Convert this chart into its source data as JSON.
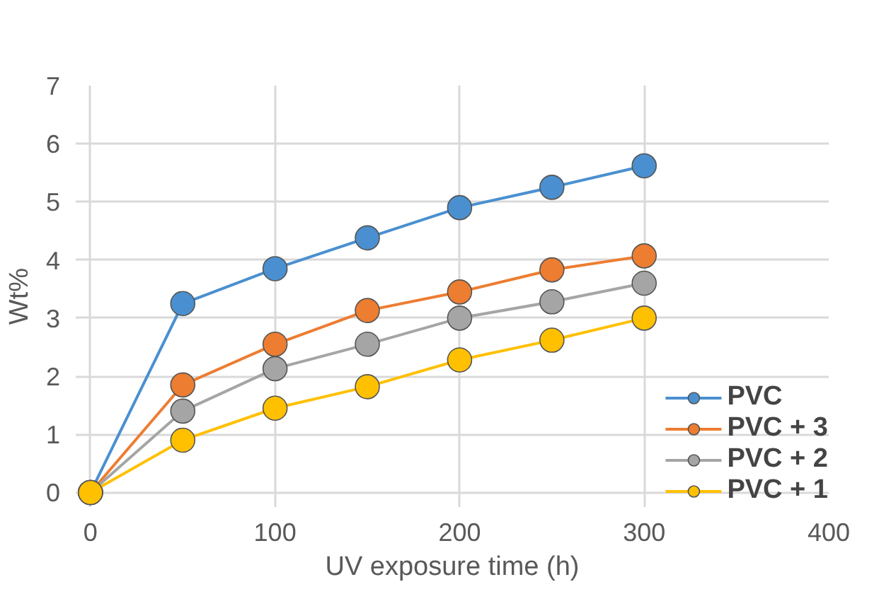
{
  "chart_data": {
    "type": "line",
    "xlabel": "UV exposure time (h)",
    "ylabel": "Wt%",
    "x": [
      0,
      50,
      100,
      150,
      200,
      250,
      300
    ],
    "series": [
      {
        "name": "PVC",
        "color": "#4a90d0",
        "values": [
          0,
          3.25,
          3.85,
          4.38,
          4.9,
          5.25,
          5.62
        ]
      },
      {
        "name": "PVC + 3",
        "color": "#ed7d31",
        "values": [
          0,
          1.85,
          2.55,
          3.13,
          3.45,
          3.83,
          4.07
        ]
      },
      {
        "name": "PVC + 2",
        "color": "#a5a5a5",
        "values": [
          0,
          1.4,
          2.13,
          2.55,
          3.0,
          3.28,
          3.6
        ]
      },
      {
        "name": "PVC + 1",
        "color": "#ffc000",
        "values": [
          0,
          0.9,
          1.45,
          1.82,
          2.28,
          2.62,
          3.0
        ]
      }
    ],
    "xlim": [
      0,
      400
    ],
    "ylim": [
      0,
      7
    ],
    "xticks": [
      0,
      100,
      200,
      300,
      400
    ],
    "yticks": [
      0,
      1,
      2,
      3,
      4,
      5,
      6,
      7
    ],
    "grid": true,
    "legend": "bottom right",
    "marker": "circle",
    "line_style": "solid"
  }
}
